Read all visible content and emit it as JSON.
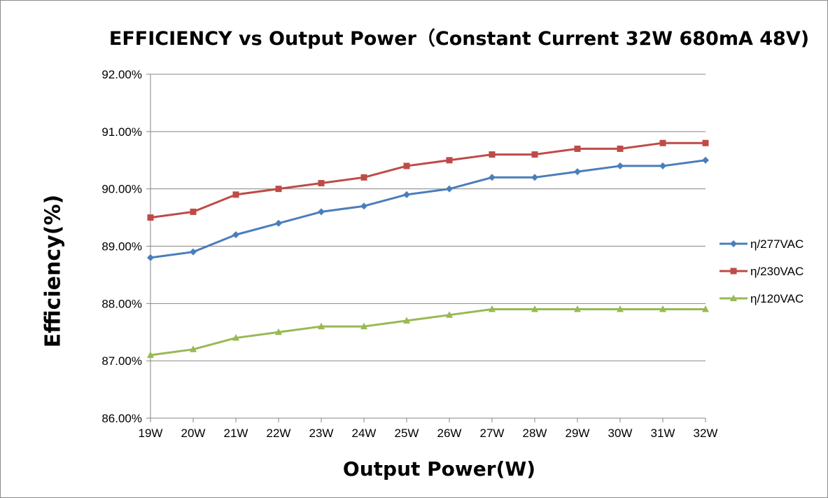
{
  "chart_data": {
    "type": "line",
    "title": "EFFICIENCY vs Output Power（Constant Current 32W 680mA 48V)",
    "xlabel": "Output Power(W)",
    "ylabel": "Efficiency(%)",
    "categories": [
      "19W",
      "20W",
      "21W",
      "22W",
      "23W",
      "24W",
      "25W",
      "26W",
      "27W",
      "28W",
      "29W",
      "30W",
      "31W",
      "32W"
    ],
    "ylim": [
      86.0,
      92.0
    ],
    "yticks": [
      "86.00%",
      "87.00%",
      "88.00%",
      "89.00%",
      "90.00%",
      "91.00%",
      "92.00%"
    ],
    "grid": "horizontal",
    "legend_position": "right",
    "series": [
      {
        "name": "η/277VAC",
        "color": "#4a7ebb",
        "marker": "diamond",
        "values": [
          88.8,
          88.9,
          89.2,
          89.4,
          89.6,
          89.7,
          89.9,
          90.0,
          90.2,
          90.2,
          90.3,
          90.4,
          90.4,
          90.5
        ]
      },
      {
        "name": "η/230VAC",
        "color": "#be4b48",
        "marker": "square",
        "values": [
          89.5,
          89.6,
          89.9,
          90.0,
          90.1,
          90.2,
          90.4,
          90.5,
          90.6,
          90.6,
          90.7,
          90.7,
          90.8,
          90.8
        ]
      },
      {
        "name": "η/120VAC",
        "color": "#98b954",
        "marker": "triangle",
        "values": [
          87.1,
          87.2,
          87.4,
          87.5,
          87.6,
          87.6,
          87.7,
          87.8,
          87.9,
          87.9,
          87.9,
          87.9,
          87.9,
          87.9
        ]
      }
    ]
  }
}
